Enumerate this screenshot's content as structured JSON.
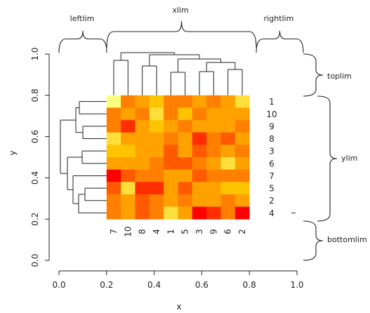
{
  "chart_data": {
    "type": "heatmap",
    "title": "",
    "xlabel": "x",
    "ylabel": "y",
    "xlim": [
      0.0,
      1.0
    ],
    "ylim": [
      0.0,
      1.0
    ],
    "x_ticks": [
      "0.0",
      "0.2",
      "0.4",
      "0.6",
      "0.8",
      "1.0"
    ],
    "y_ticks": [
      "0.0",
      "0.2",
      "0.4",
      "0.6",
      "0.8",
      "1.0"
    ],
    "heatmap_extent": {
      "x": [
        0.2,
        0.8
      ],
      "y": [
        0.2,
        0.8
      ]
    },
    "row_labels": [
      "1",
      "10",
      "9",
      "8",
      "3",
      "6",
      "7",
      "5",
      "2",
      "4"
    ],
    "col_labels": [
      "7",
      "10",
      "8",
      "4",
      "1",
      "5",
      "3",
      "9",
      "6",
      "2"
    ],
    "color_scale": [
      "#ff0000",
      "#ff2e00",
      "#ff5a00",
      "#ff7f00",
      "#ffa200",
      "#ffc400",
      "#ffe03a",
      "#ffff80"
    ],
    "matrix": [
      [
        7,
        3,
        4,
        5,
        3,
        3,
        4,
        3,
        4,
        6
      ],
      [
        3,
        4,
        3,
        6,
        3,
        5,
        3,
        4,
        4,
        4
      ],
      [
        3,
        1,
        4,
        5,
        4,
        3,
        4,
        4,
        4,
        3
      ],
      [
        6,
        4,
        4,
        4,
        3,
        4,
        1,
        3,
        2,
        4
      ],
      [
        5,
        5,
        4,
        4,
        2,
        4,
        2,
        3,
        4,
        3
      ],
      [
        4,
        4,
        4,
        3,
        2,
        2,
        3,
        4,
        6,
        4
      ],
      [
        0,
        2,
        3,
        3,
        4,
        4,
        2,
        3,
        3,
        3
      ],
      [
        2,
        6,
        1,
        1,
        4,
        2,
        4,
        4,
        5,
        5
      ],
      [
        3,
        4,
        2,
        3,
        4,
        3,
        4,
        4,
        3,
        4
      ],
      [
        3,
        4,
        2,
        3,
        6,
        4,
        0,
        1,
        3,
        0
      ]
    ],
    "annotations": [
      "xlim",
      "leftlim",
      "rightlim",
      "toplim",
      "ylim",
      "bottomlim"
    ]
  }
}
